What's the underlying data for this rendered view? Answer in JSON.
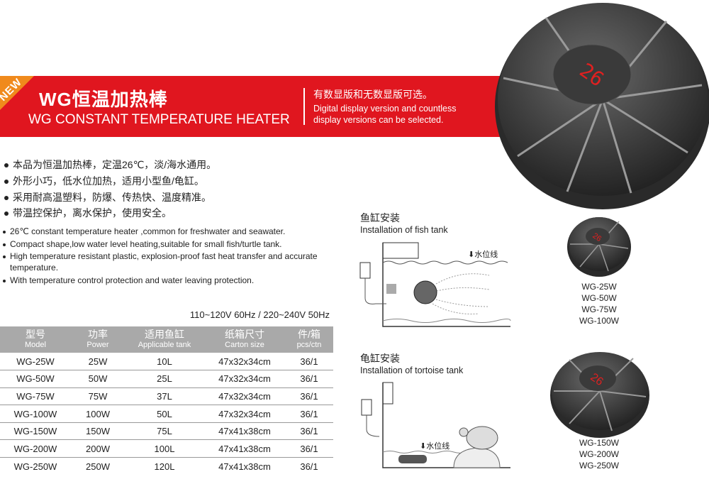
{
  "banner": {
    "badge": "NEW",
    "title_cn": "WG恒温加热棒",
    "title_en": "WG CONSTANT TEMPERATURE HEATER",
    "subtitle_cn": "有数显版和无数显版可选。",
    "subtitle_en_1": "Digital display version and countless",
    "subtitle_en_2": "display versions can be selected.",
    "color": "#e0161f",
    "badge_color": "#f08a1c"
  },
  "features_cn": [
    "本品为恒温加热棒，定温26℃，淡/海水通用。",
    "外形小巧，低水位加热，适用小型鱼/龟缸。",
    "采用耐高温塑料，防爆、传热快、温度精准。",
    "带温控保护，离水保护，使用安全。"
  ],
  "features_en": [
    "26℃ constant temperature heater ,common for freshwater and seawater.",
    "Compact shape,low water level heating,suitable for small fish/turtle tank.",
    "High temperature resistant  plastic,  explosion-proof fast heat transfer and accurate temperature.",
    "With temperature control protection and water leaving protection."
  ],
  "voltage": "110~120V 60Hz / 220~240V 50Hz",
  "table": {
    "headers": [
      {
        "cn": "型号",
        "en": "Model"
      },
      {
        "cn": "功率",
        "en": "Power"
      },
      {
        "cn": "适用鱼缸",
        "en": "Applicable tank"
      },
      {
        "cn": "纸箱尺寸",
        "en": "Carton size"
      },
      {
        "cn": "件/箱",
        "en": "pcs/ctn"
      }
    ],
    "rows": [
      [
        "WG-25W",
        "25W",
        "10L",
        "47x32x34cm",
        "36/1"
      ],
      [
        "WG-50W",
        "50W",
        "25L",
        "47x32x34cm",
        "36/1"
      ],
      [
        "WG-75W",
        "75W",
        "37L",
        "47x32x34cm",
        "36/1"
      ],
      [
        "WG-100W",
        "100W",
        "50L",
        "47x32x34cm",
        "36/1"
      ],
      [
        "WG-150W",
        "150W",
        "75L",
        "47x41x38cm",
        "36/1"
      ],
      [
        "WG-200W",
        "200W",
        "100L",
        "47x41x38cm",
        "36/1"
      ],
      [
        "WG-250W",
        "250W",
        "120L",
        "47x41x38cm",
        "36/1"
      ]
    ]
  },
  "fish_tank": {
    "title_cn": "鱼缸安装",
    "title_en": "Installation of fish tank",
    "water_line": "水位线"
  },
  "tortoise_tank": {
    "title_cn": "龟缸安装",
    "title_en": "Installation of tortoise tank",
    "water_line": "水位线"
  },
  "product_display": "26",
  "group_small": [
    "WG-25W",
    "WG-50W",
    "WG-75W",
    "WG-100W"
  ],
  "group_large": [
    "WG-150W",
    "WG-200W",
    "WG-250W"
  ]
}
